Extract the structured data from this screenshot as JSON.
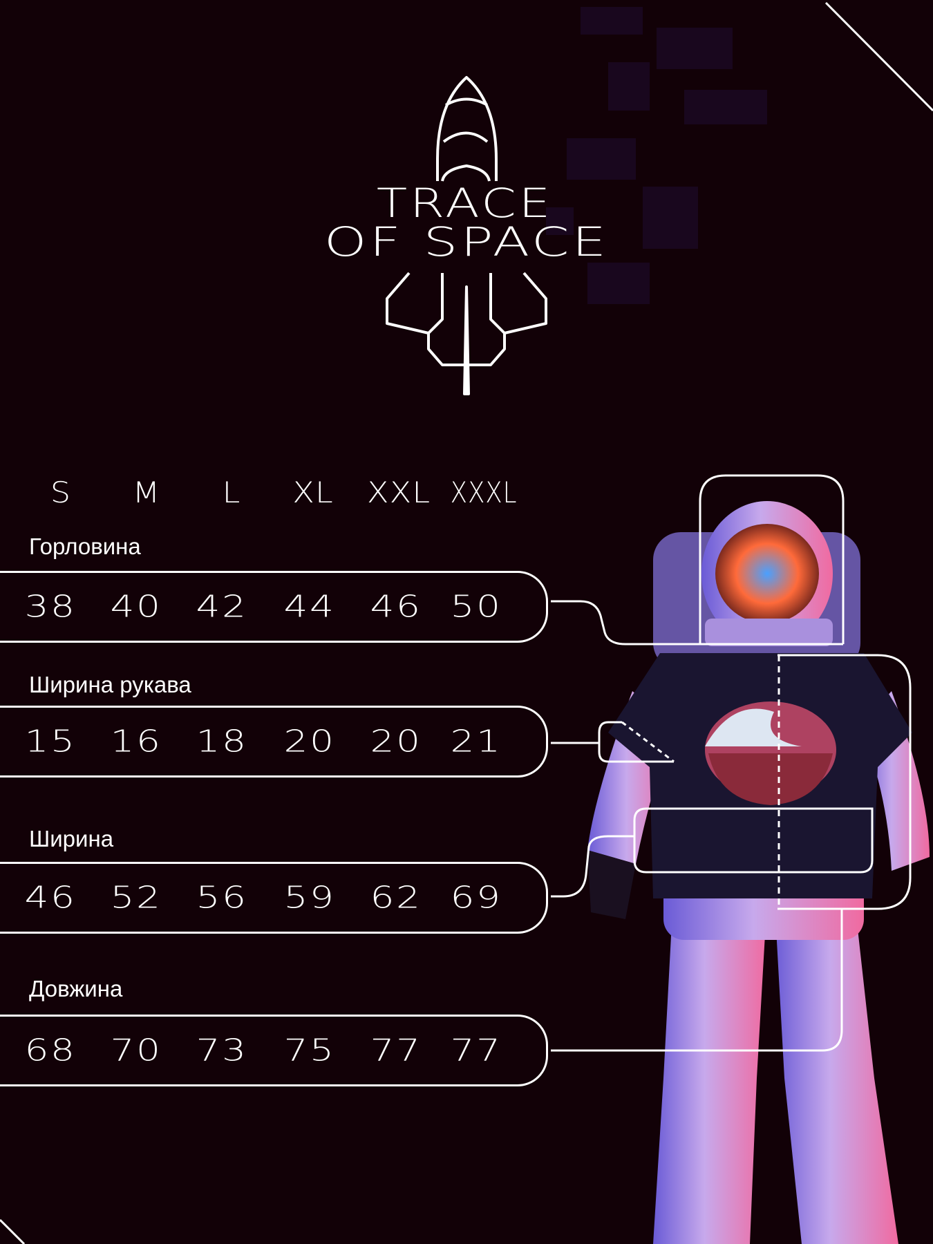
{
  "brand": {
    "line1": "TRACE",
    "line2": "OF SPACE",
    "icon": "rocket-logo"
  },
  "sizes": [
    "S",
    "M",
    "L",
    "XL",
    "XXL",
    "XXXL"
  ],
  "rows": [
    {
      "label": "Горловина",
      "values": [
        "38",
        "40",
        "42",
        "44",
        "46",
        "50"
      ]
    },
    {
      "label": "Ширина рукава",
      "values": [
        "15",
        "16",
        "18",
        "20",
        "20",
        "21"
      ]
    },
    {
      "label": "Ширина",
      "values": [
        "46",
        "52",
        "56",
        "59",
        "62",
        "69"
      ]
    },
    {
      "label": "Довжина",
      "values": [
        "68",
        "70",
        "73",
        "75",
        "77",
        "77"
      ]
    }
  ],
  "colors": {
    "background": "#120107",
    "lines": "#ffffff",
    "suit": "#c9a6e6",
    "shirt": "#1a1530"
  }
}
